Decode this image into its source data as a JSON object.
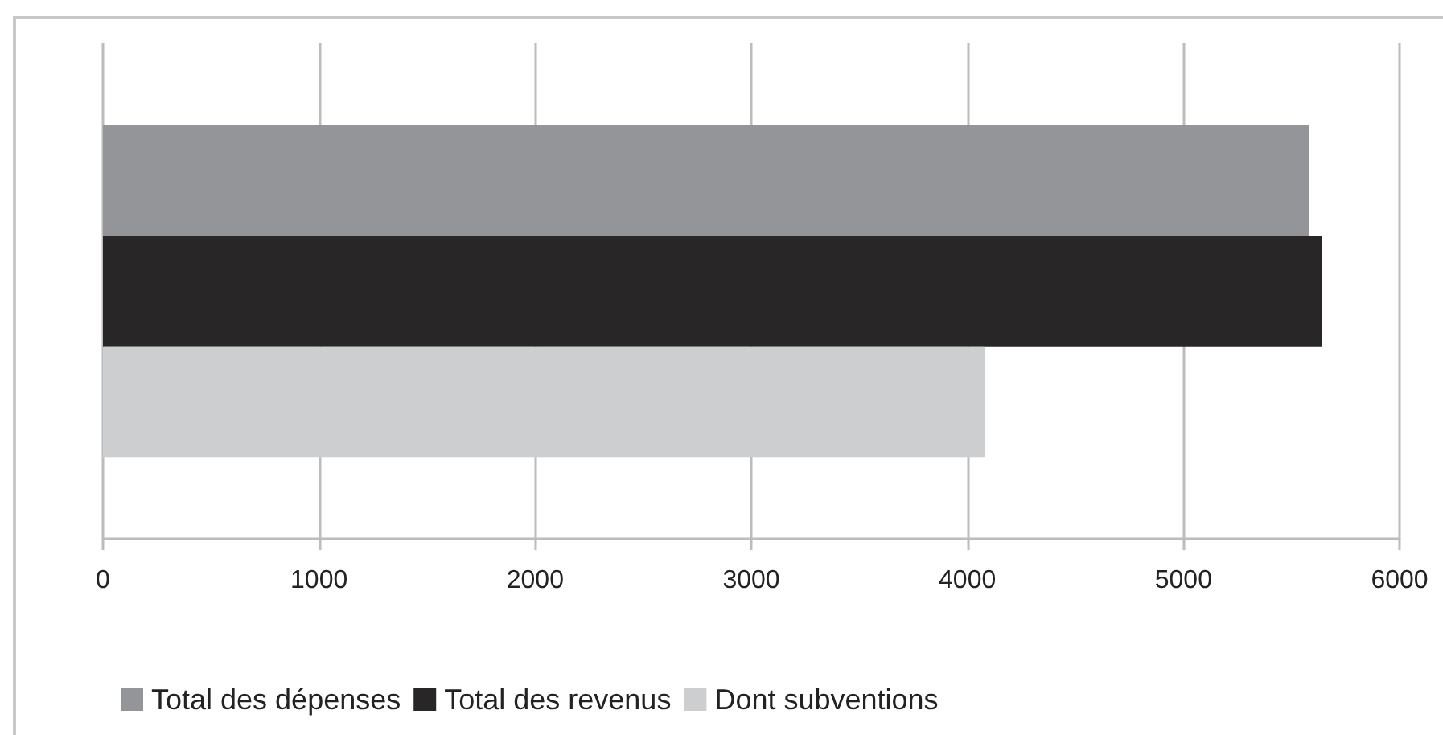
{
  "chart_data": {
    "type": "bar",
    "orientation": "horizontal",
    "categories": [
      null
    ],
    "series": [
      {
        "name": "Total des dépenses",
        "color": "#939598",
        "values": [
          5580
        ]
      },
      {
        "name": "Total des revenus",
        "color": "#282627",
        "values": [
          5640
        ]
      },
      {
        "name": "Dont subventions",
        "color": "#cdcecf",
        "values": [
          4080
        ]
      }
    ],
    "xlim": [
      0,
      6000
    ],
    "xticks": [
      0,
      1000,
      2000,
      3000,
      4000,
      5000,
      6000
    ],
    "grid": "x",
    "legend": "bottom"
  }
}
